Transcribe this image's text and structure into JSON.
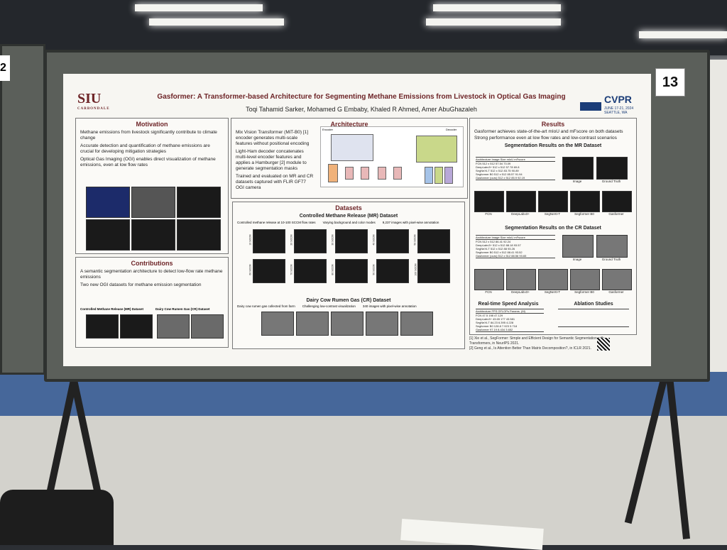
{
  "poster": {
    "title": "Gasformer: A Transformer-based Architecture for Segmenting Methane Emissions from Livestock in Optical Gas Imaging",
    "authors": "Toqi Tahamid Sarker, Mohamed G Embaby, Khaled R Ahmed, Amer AbuGhazaleh",
    "siu_logo": "SIU",
    "siu_sub": "CARBONDALE",
    "cvpr_logo": "CVPR",
    "cvpr_sub": "JUNE 17-21, 2024 SEATTLE, WA",
    "board_number": "13",
    "neighbor_number": "2",
    "motivation": {
      "heading": "Motivation",
      "bullets": [
        "Methane emissions from livestock significantly contribute to climate change",
        "Accurate detection and quantification of methane emissions are crucial for developing mitigation strategies",
        "Optical Gas Imaging (OGI) enables direct visualization of methane emissions, even at low flow rates"
      ]
    },
    "contributions": {
      "heading": "Contributions",
      "bullets": [
        "A semantic segmentation architecture to detect low-flow rate methane emissions",
        "Two new OGI datasets for methane emission segmentation"
      ],
      "mr_label": "Controlled Methane Release (MR) Dataset",
      "cr_label": "Dairy Cow Rumen Gas (CR) Dataset"
    },
    "architecture": {
      "heading": "Architecture",
      "bullets": [
        "Mix Vision Transformer (MiT-B0) [1] encoder generates multi-scale features without positional encoding",
        "Light-Ham decoder concatenates multi-level encoder features and applies a Hamburger [2] module to generate segmentation masks",
        "Trained and evaluated on MR and CR datasets captured with FLIR GF77 OGI camera"
      ],
      "encoder_label": "Encoder",
      "decoder_label": "Decoder"
    },
    "datasets": {
      "heading": "Datasets",
      "mr_title": "Controlled Methane Release (MR) Dataset",
      "mr_notes": [
        "Controlled methane release at 10-100 SCCM flow rates",
        "Varying background and color modes",
        "9,237 images with pixel-wise annotation"
      ],
      "mr_rates": [
        "10 SCCM",
        "20 SCCM",
        "30 SCCM",
        "40 SCCM",
        "50 SCCM",
        "60 SCCM",
        "70 SCCM",
        "80 SCCM",
        "90 SCCM",
        "100 SCCM"
      ],
      "cr_title": "Dairy Cow Rumen Gas (CR) Dataset",
      "cr_notes": [
        "Dairy cow rumen gas collected from farm",
        "Challenging low-contrast visualization",
        "340 images with pixel-wise annotation"
      ]
    },
    "results": {
      "heading": "Results",
      "bullets": [
        "Gasformer achieves state-of-the-art mIoU and mFscore on both datasets",
        "Strong performance even at low flow rates and low-contrast scenarios"
      ],
      "mr_heading": "Segmentation Results on the MR Dataset",
      "cr_heading": "Segmentation Results on the CR Dataset",
      "mr_table": {
        "header": [
          "Architecture",
          "Image Size",
          "mIoU",
          "mFscore"
        ],
        "rows": [
          [
            "FCN",
            "512 x 512",
            "57.54",
            "73.09"
          ],
          [
            "DeepLabv3+",
            "512 x 512",
            "57.78",
            "69.8"
          ],
          [
            "SegNeXt-T",
            "512 x 512",
            "83.75",
            "90.89"
          ],
          [
            "Segformer B0",
            "512 x 512",
            "85.57",
            "91.94"
          ],
          [
            "Gasformer (ours)",
            "512 x 512",
            "85.9",
            "92.19"
          ]
        ]
      },
      "cr_table": {
        "header": [
          "Architecture",
          "Image Size",
          "mIoU",
          "mFscore"
        ],
        "rows": [
          [
            "FCN",
            "512 x 512",
            "86.41",
            "92.24"
          ],
          [
            "DeepLabv3+",
            "512 x 512",
            "88.18",
            "93.57"
          ],
          [
            "SegNeXt-T",
            "512 x 512",
            "88",
            "93.26"
          ],
          [
            "Segformer B0",
            "512 x 512",
            "88.41",
            "93.52"
          ],
          [
            "Gasformer (ours)",
            "512 x 512",
            "88.56",
            "93.65"
          ]
        ]
      },
      "mr_captions": [
        "Image",
        "Ground Truth",
        "FCN",
        "DeepLabv3+",
        "SegNeXt-T",
        "Segformer B0",
        "Gasformer"
      ],
      "cr_captions": [
        "Image",
        "Ground Truth",
        "FCN",
        "DeepLabv3+",
        "SegNeXt-T",
        "Segformer B0",
        "Gasformer"
      ],
      "speed_heading": "Real-time Speed Analysis",
      "speed_table": {
        "header": [
          "Architecture",
          "FPS",
          "GFLOPs",
          "Params. (M)"
        ],
        "rows": [
          [
            "FCN",
            "47.5",
            "198",
            "47.129"
          ],
          [
            "DeepLabv3+",
            "43.65",
            "177",
            "43.581"
          ],
          [
            "SegNeXt-T",
            "84.23",
            "6.395",
            "4.228"
          ],
          [
            "Segformer B0",
            "128.8",
            "7.923",
            "3.718"
          ],
          [
            "Gasformer",
            "97.19",
            "8.434",
            "3.652"
          ]
        ]
      },
      "ablation_heading": "Ablation Studies"
    },
    "references": [
      "[1] Xie et al., SegFormer: Simple and Efficient Design for Semantic Segmentation with Transformers, in NeurIPS 2021.",
      "[2] Geng et al., Is Attention Better Than Matrix Decomposition?, in ICLR 2021."
    ]
  },
  "colors": {
    "accent": "#6e2528",
    "cvpr_blue": "#1b3d78",
    "board": "#5b5f5a",
    "carpet": "#46679a"
  }
}
